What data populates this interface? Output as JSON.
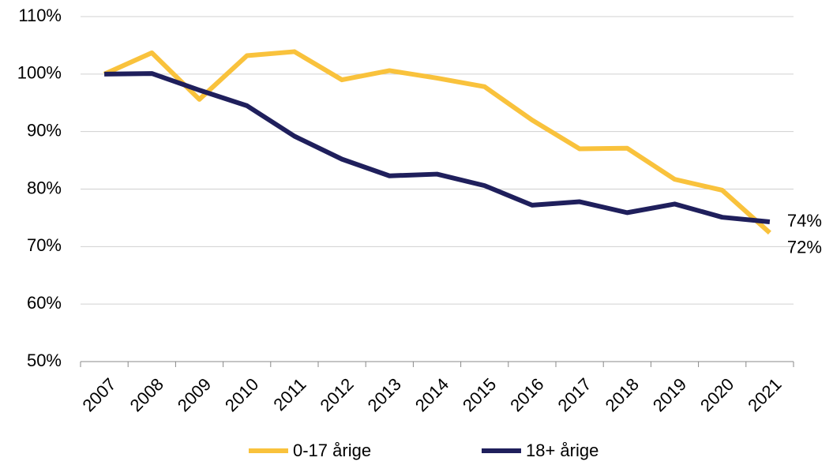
{
  "chart_data": {
    "type": "line",
    "categories": [
      "2007",
      "2008",
      "2009",
      "2010",
      "2011",
      "2012",
      "2013",
      "2014",
      "2015",
      "2016",
      "2017",
      "2018",
      "2019",
      "2020",
      "2021"
    ],
    "series": [
      {
        "name": "0-17 årige",
        "color": "#f9c23c",
        "values": [
          100,
          103.7,
          95.6,
          103.2,
          103.9,
          99,
          100.6,
          99.3,
          97.8,
          92,
          87,
          87.1,
          81.7,
          79.8,
          72.4
        ],
        "value_labels": [
          null,
          null,
          null,
          null,
          null,
          null,
          null,
          null,
          null,
          null,
          null,
          null,
          null,
          null,
          "72%"
        ]
      },
      {
        "name": "18+ årige",
        "color": "#1f1f5c",
        "values": [
          100,
          100.1,
          97.2,
          94.5,
          89.2,
          85.2,
          82.3,
          82.6,
          80.6,
          77.2,
          77.8,
          75.9,
          77.4,
          75.1,
          74.3
        ],
        "value_labels": [
          null,
          null,
          null,
          null,
          null,
          null,
          null,
          null,
          null,
          null,
          null,
          null,
          null,
          null,
          "74%"
        ]
      }
    ],
    "ylim": [
      50,
      110
    ],
    "yticks": [
      {
        "value": 50,
        "label": "50%"
      },
      {
        "value": 60,
        "label": "60%"
      },
      {
        "value": 70,
        "label": "70%"
      },
      {
        "value": 80,
        "label": "80%"
      },
      {
        "value": 90,
        "label": "90%"
      },
      {
        "value": 100,
        "label": "100%"
      },
      {
        "value": 110,
        "label": "110%"
      }
    ],
    "grid": true
  }
}
